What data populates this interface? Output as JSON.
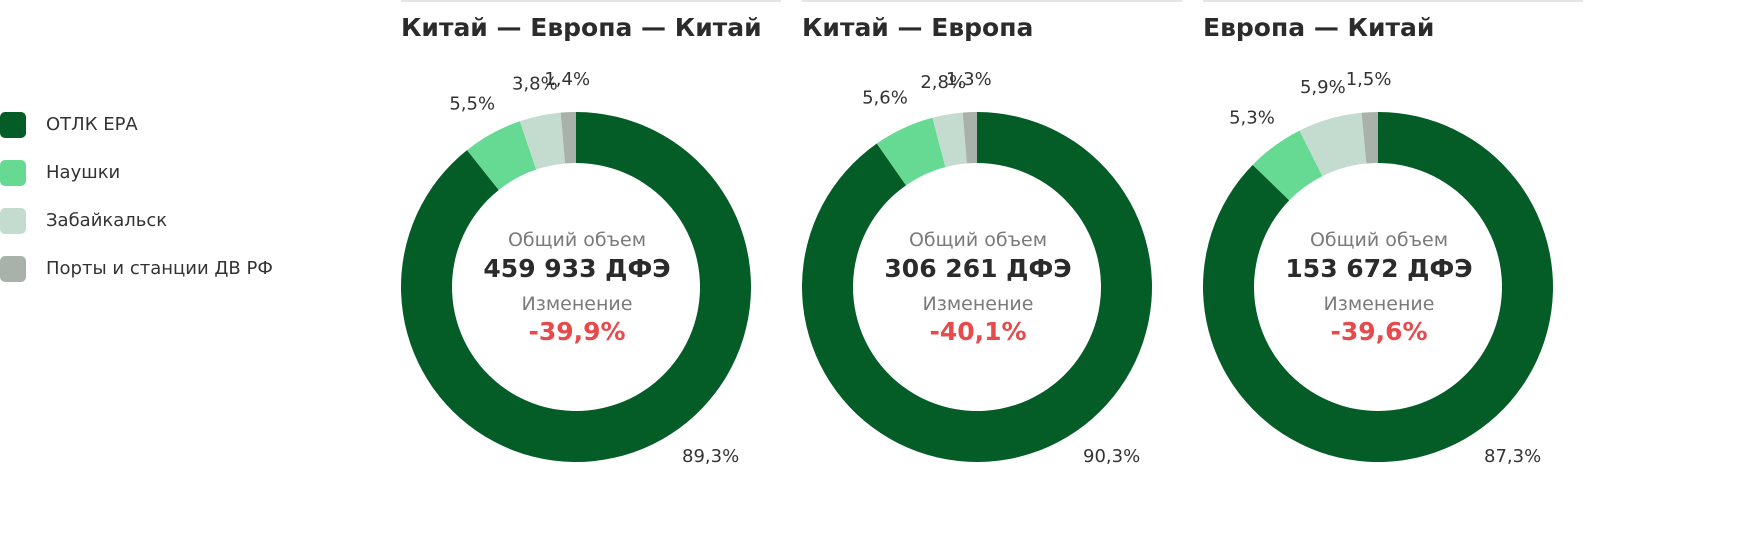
{
  "legend": {
    "items": [
      {
        "label": "ОТЛК ЕРА",
        "color": "#045c26"
      },
      {
        "label": "Наушки",
        "color": "#66d993"
      },
      {
        "label": "Забайкальск",
        "color": "#c4dccf"
      },
      {
        "label": "Порты и станции ДВ РФ",
        "color": "#a8b2aa"
      }
    ]
  },
  "chart_data": [
    {
      "type": "pie",
      "title": "Китай — Европа — Китай",
      "categories": [
        "ОТЛК ЕРА",
        "Наушки",
        "Забайкальск",
        "Порты и станции ДВ РФ"
      ],
      "values": [
        89.3,
        5.5,
        3.8,
        1.4
      ],
      "labels": [
        "89,3%",
        "5,5%",
        "3,8%",
        "1,4%"
      ],
      "center": {
        "caption": "Общий объем",
        "total": "459 933 ДФЭ",
        "change_caption": "Изменение",
        "change": "-39,9%"
      }
    },
    {
      "type": "pie",
      "title": "Китай — Европа",
      "categories": [
        "ОТЛК ЕРА",
        "Наушки",
        "Забайкальск",
        "Порты и станции ДВ РФ"
      ],
      "values": [
        90.3,
        5.6,
        2.8,
        1.3
      ],
      "labels": [
        "90,3%",
        "5,6%",
        "2,8%",
        "1,3%"
      ],
      "center": {
        "caption": "Общий объем",
        "total": "306 261 ДФЭ",
        "change_caption": "Изменение",
        "change": "-40,1%"
      }
    },
    {
      "type": "pie",
      "title": "Европа — Китай",
      "categories": [
        "ОТЛК ЕРА",
        "Наушки",
        "Забайкальск",
        "Порты и станции ДВ РФ"
      ],
      "values": [
        87.3,
        5.3,
        5.9,
        1.5
      ],
      "labels": [
        "87,3%",
        "5,3%",
        "5,9%",
        "1,5%"
      ],
      "center": {
        "caption": "Общий объем",
        "total": "153 672 ДФЭ",
        "change_caption": "Изменение",
        "change": "-39,6%"
      }
    }
  ]
}
